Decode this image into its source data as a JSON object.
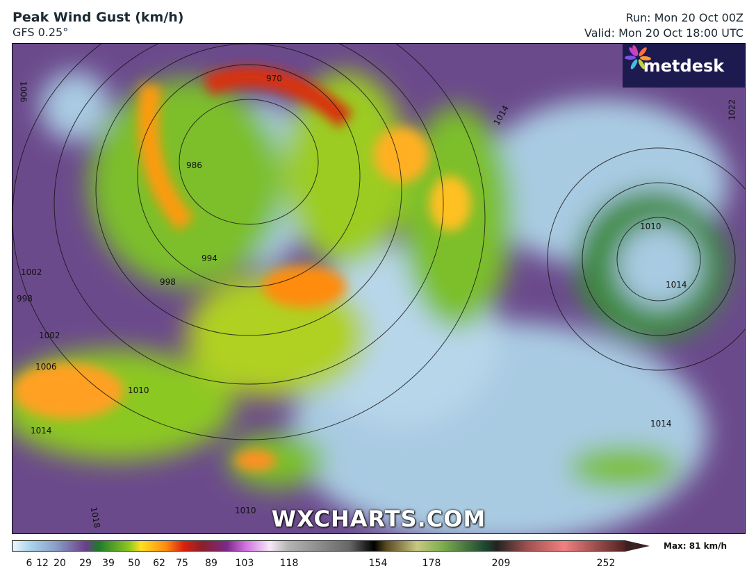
{
  "header": {
    "title": "Peak Wind Gust (km/h)",
    "model": "GFS 0.25°",
    "run": "Run: Mon 20 Oct 00Z",
    "valid": "Valid: Mon 20 Oct 18:00 UTC"
  },
  "logo": {
    "text": "metdesk"
  },
  "watermark": "WXCHARTS.COM",
  "isobars": [
    "970",
    "986",
    "994",
    "998",
    "1002",
    "998",
    "1002",
    "1006",
    "1010",
    "1014",
    "1018",
    "1010",
    "1006",
    "1014",
    "1010",
    "1014",
    "1022",
    "1014"
  ],
  "legend": {
    "ticks": [
      "6",
      "12",
      "20",
      "29",
      "39",
      "50",
      "62",
      "75",
      "89",
      "103",
      "118",
      "154",
      "178",
      "209",
      "252"
    ],
    "max": "Max: 81 km/h"
  },
  "colors": {
    "calm": "#a9d2ea",
    "moderate": "#8cc820",
    "strong": "#ff8c10",
    "severe": "#d82010"
  }
}
